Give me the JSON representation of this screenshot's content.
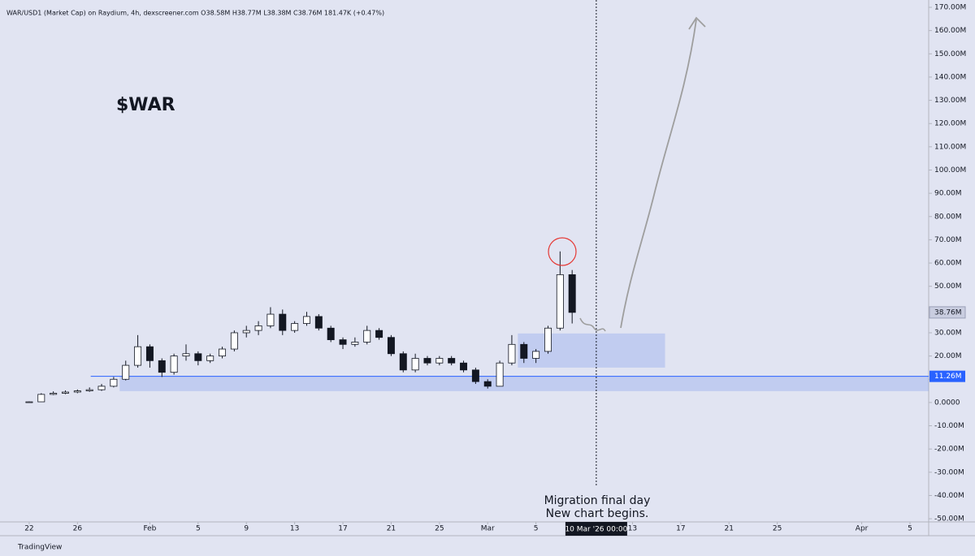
{
  "chart_data": {
    "type": "candlestick",
    "header": "WAR/USD1 (Market Cap) on Raydium, 4h, dexscreener.com  O38.58M  H38.77M  L38.38M  C38.76M  181.47K (+0.47%)",
    "title": "$WAR",
    "annotations": [
      "Migration final day",
      "New chart begins."
    ],
    "brand": "TradingView",
    "up_color": "#ffffff",
    "down_color": "#131722",
    "x": [
      0,
      1,
      2,
      3,
      4,
      5,
      6,
      7,
      8,
      9,
      10,
      11,
      12,
      13,
      14,
      15,
      16,
      17,
      18,
      19,
      20,
      21,
      22,
      23,
      24,
      25,
      26,
      27,
      28,
      29,
      30,
      31,
      32,
      33,
      34,
      35,
      36,
      37,
      38,
      39,
      40,
      41,
      42,
      43,
      44,
      45
    ],
    "open": [
      0.2,
      0.3,
      3.5,
      4,
      4.5,
      5,
      5.5,
      7,
      10,
      16,
      24,
      18,
      13,
      20,
      21,
      18,
      20,
      23,
      30,
      31,
      33,
      38,
      31,
      34,
      37,
      32,
      27,
      25,
      26,
      31,
      28,
      21,
      14,
      19,
      17,
      19,
      17,
      14,
      9,
      7,
      17,
      25,
      19,
      22,
      32,
      55
    ],
    "high": [
      0.5,
      4,
      4.8,
      5.2,
      5.6,
      6.5,
      8,
      11,
      18,
      29,
      25,
      19,
      21,
      25,
      22,
      21,
      24,
      31,
      33,
      35,
      41,
      40,
      35,
      39,
      38,
      33,
      28,
      28,
      33,
      32,
      29,
      22,
      21,
      20,
      20,
      20,
      18,
      15,
      10,
      18,
      29,
      26,
      23,
      33,
      65,
      57
    ],
    "low": [
      0.1,
      0.3,
      3.2,
      3.6,
      4,
      4.6,
      5,
      6.5,
      9.5,
      15,
      15,
      11,
      12,
      18,
      16,
      17,
      19,
      22,
      28,
      29,
      32,
      29,
      30,
      33,
      31,
      26,
      23,
      24,
      25,
      27,
      20,
      13,
      13,
      16,
      16,
      16,
      13,
      8,
      6,
      7,
      16,
      17,
      17,
      21,
      31,
      34
    ],
    "close": [
      0.3,
      3.5,
      4,
      4.5,
      5,
      5.5,
      7,
      10,
      16,
      24,
      18,
      13,
      20,
      21,
      18,
      20,
      23,
      30,
      31,
      33,
      38,
      31,
      34,
      37,
      32,
      27,
      25,
      26,
      31,
      28,
      21,
      14,
      19,
      17,
      19,
      17,
      14,
      9,
      7,
      17,
      25,
      19,
      22,
      32,
      55,
      38.76
    ],
    "xlim": [
      -2.42,
      74.55
    ],
    "xticks": [
      {
        "value": 0,
        "label": "22"
      },
      {
        "value": 4,
        "label": "26"
      },
      {
        "value": 10,
        "label": "Feb"
      },
      {
        "value": 14,
        "label": "5"
      },
      {
        "value": 18,
        "label": "9"
      },
      {
        "value": 22,
        "label": "13"
      },
      {
        "value": 26,
        "label": "17"
      },
      {
        "value": 30,
        "label": "21"
      },
      {
        "value": 34,
        "label": "25"
      },
      {
        "value": 38,
        "label": "Mar"
      },
      {
        "value": 42,
        "label": "5"
      },
      {
        "value": 50,
        "label": "13"
      },
      {
        "value": 54,
        "label": "17"
      },
      {
        "value": 58,
        "label": "21"
      },
      {
        "value": 62,
        "label": "25"
      },
      {
        "value": 69,
        "label": "Apr"
      },
      {
        "value": 73,
        "label": "5"
      }
    ],
    "ylim": [
      -51.36,
      173.15
    ],
    "yticks": [
      {
        "value": 170,
        "label": "170.00M"
      },
      {
        "value": 160,
        "label": "160.00M"
      },
      {
        "value": 150,
        "label": "150.00M"
      },
      {
        "value": 140,
        "label": "140.00M"
      },
      {
        "value": 130,
        "label": "130.00M"
      },
      {
        "value": 120,
        "label": "120.00M"
      },
      {
        "value": 110,
        "label": "110.00M"
      },
      {
        "value": 100,
        "label": "100.00M"
      },
      {
        "value": 90,
        "label": "90.00M"
      },
      {
        "value": 80,
        "label": "80.00M"
      },
      {
        "value": 70,
        "label": "70.00M"
      },
      {
        "value": 60,
        "label": "60.00M"
      },
      {
        "value": 50,
        "label": "50.00M"
      },
      {
        "value": 40,
        "label": "40.00M"
      },
      {
        "value": 30,
        "label": "30.00M"
      },
      {
        "value": 20,
        "label": "20.00M"
      },
      {
        "value": 10,
        "label": "10.00M"
      },
      {
        "value": 0,
        "label": "0.0000"
      },
      {
        "value": -10,
        "label": "-10.00M"
      },
      {
        "value": -20,
        "label": "-20.00M"
      },
      {
        "value": -30,
        "label": "-30.00M"
      },
      {
        "value": -40,
        "label": "-40.00M"
      },
      {
        "value": -50,
        "label": "-50.00M"
      }
    ],
    "last_price": {
      "value": 38.76,
      "label": "38.76M"
    },
    "level": {
      "value": 11.26,
      "label": "11.26M",
      "x_start": 5.1
    },
    "zones": [
      {
        "from": 4.9,
        "to": 11.26,
        "x": [
          7.5,
          74.55
        ]
      },
      {
        "from": 15,
        "to": 29.7,
        "x": [
          40.5,
          52.7
        ]
      }
    ],
    "crosshair": {
      "value": 47,
      "label": "10 Mar '26  00:00"
    }
  }
}
